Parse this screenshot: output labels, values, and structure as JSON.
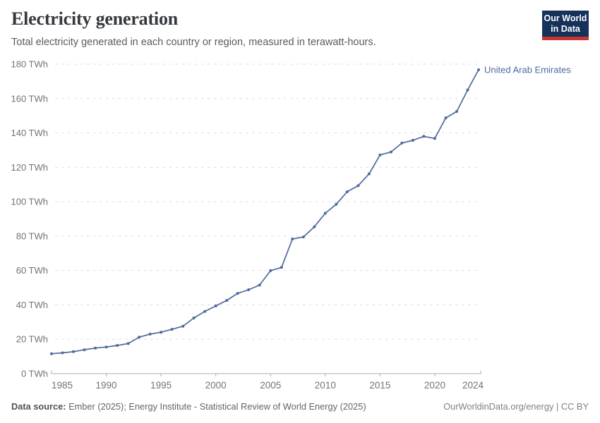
{
  "header": {
    "title": "Electricity generation",
    "subtitle": "Total electricity generated in each country or region, measured in terawatt-hours.",
    "logo_line1": "Our World",
    "logo_line2": "in Data"
  },
  "chart_data": {
    "type": "line",
    "title": "Electricity generation",
    "entity": "United Arab Emirates",
    "unit": "TWh",
    "color": "#4C6A9C",
    "x": [
      1985,
      1986,
      1987,
      1988,
      1989,
      1990,
      1991,
      1992,
      1993,
      1994,
      1995,
      1996,
      1997,
      1998,
      1999,
      2000,
      2001,
      2002,
      2003,
      2004,
      2005,
      2006,
      2007,
      2008,
      2009,
      2010,
      2011,
      2012,
      2013,
      2014,
      2015,
      2016,
      2017,
      2018,
      2019,
      2020,
      2021,
      2022,
      2023,
      2024
    ],
    "values": [
      11.6,
      12.1,
      12.8,
      13.9,
      14.9,
      15.5,
      16.4,
      17.5,
      21.2,
      23.0,
      24.1,
      25.8,
      27.6,
      32.4,
      36.2,
      39.4,
      42.6,
      46.7,
      48.8,
      51.5,
      59.9,
      61.8,
      78.3,
      79.5,
      85.4,
      93.3,
      98.5,
      105.8,
      109.3,
      116.2,
      127.2,
      128.9,
      134.1,
      135.7,
      138.0,
      136.8,
      148.7,
      152.5,
      165.0,
      176.7
    ],
    "xlim": [
      1985,
      2024
    ],
    "ylim": [
      0,
      180
    ],
    "xticks": [
      1985,
      1990,
      1995,
      2000,
      2005,
      2010,
      2015,
      2020,
      2024
    ],
    "xtick_labels": [
      "1985",
      "1990",
      "1995",
      "2000",
      "2005",
      "2010",
      "2015",
      "2020",
      "2024"
    ],
    "yticks": [
      0,
      20,
      40,
      60,
      80,
      100,
      120,
      140,
      160,
      180
    ],
    "ytick_labels": [
      "0 TWh",
      "20 TWh",
      "40 TWh",
      "60 TWh",
      "80 TWh",
      "100 TWh",
      "120 TWh",
      "140 TWh",
      "160 TWh",
      "180 TWh"
    ],
    "grid": "horizontal dashed",
    "legend_position": "end-of-line label"
  },
  "footer": {
    "source_label": "Data source:",
    "source_text": " Ember (2025); Energy Institute - Statistical Review of World Energy (2025)",
    "credit": "OurWorldinData.org/energy | CC BY"
  },
  "colors": {
    "series": "#4C6A9C",
    "grid": "#dadde0",
    "axis": "#a8afb4",
    "tick_text": "#6e747a",
    "logo_navy": "#14325a",
    "logo_red": "#cb3437"
  }
}
